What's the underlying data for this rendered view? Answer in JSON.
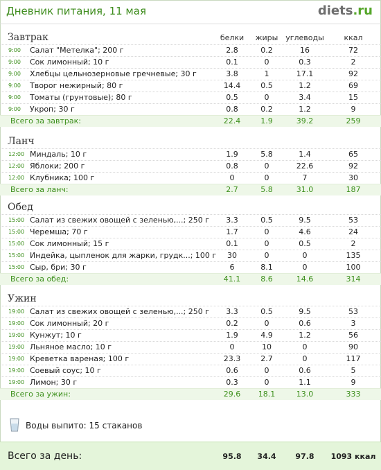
{
  "header": {
    "title": "Дневник питания, 11 мая",
    "logo_main": "diets",
    "logo_tld": ".ru"
  },
  "columns": {
    "protein": "белки",
    "fat": "жиры",
    "carbs": "углеводы",
    "kcal": "ккал"
  },
  "sections": [
    {
      "title": "Завтрак",
      "items": [
        {
          "time": "9:00",
          "name": "Салат \"Метелка\"; 200 г",
          "protein": "2.8",
          "fat": "0.2",
          "carbs": "16",
          "kcal": "72"
        },
        {
          "time": "9:00",
          "name": "Сок лимонный; 10 г",
          "protein": "0.1",
          "fat": "0",
          "carbs": "0.3",
          "kcal": "2"
        },
        {
          "time": "9:00",
          "name": "Хлебцы цельнозерновые гречневые; 30 г",
          "protein": "3.8",
          "fat": "1",
          "carbs": "17.1",
          "kcal": "92"
        },
        {
          "time": "9:00",
          "name": "Творог нежирный; 80 г",
          "protein": "14.4",
          "fat": "0.5",
          "carbs": "1.2",
          "kcal": "69"
        },
        {
          "time": "9:00",
          "name": "Томаты (грунтовые); 80 г",
          "protein": "0.5",
          "fat": "0",
          "carbs": "3.4",
          "kcal": "15"
        },
        {
          "time": "9:00",
          "name": "Укроп; 30 г",
          "protein": "0.8",
          "fat": "0.2",
          "carbs": "1.2",
          "kcal": "9"
        }
      ],
      "total": {
        "label": "Всего за завтрак:",
        "protein": "22.4",
        "fat": "1.9",
        "carbs": "39.2",
        "kcal": "259"
      }
    },
    {
      "title": "Ланч",
      "items": [
        {
          "time": "12:00",
          "name": "Миндаль; 10 г",
          "protein": "1.9",
          "fat": "5.8",
          "carbs": "1.4",
          "kcal": "65"
        },
        {
          "time": "12:00",
          "name": "Яблоки; 200 г",
          "protein": "0.8",
          "fat": "0",
          "carbs": "22.6",
          "kcal": "92"
        },
        {
          "time": "12:00",
          "name": "Клубника; 100 г",
          "protein": "0",
          "fat": "0",
          "carbs": "7",
          "kcal": "30"
        }
      ],
      "total": {
        "label": "Всего за ланч:",
        "protein": "2.7",
        "fat": "5.8",
        "carbs": "31.0",
        "kcal": "187"
      }
    },
    {
      "title": "Обед",
      "items": [
        {
          "time": "15:00",
          "name": "Салат из свежих овощей с зеленью,...; 250 г",
          "protein": "3.3",
          "fat": "0.5",
          "carbs": "9.5",
          "kcal": "53"
        },
        {
          "time": "15:00",
          "name": "Черемша; 70 г",
          "protein": "1.7",
          "fat": "0",
          "carbs": "4.6",
          "kcal": "24"
        },
        {
          "time": "15:00",
          "name": "Сок лимонный; 15 г",
          "protein": "0.1",
          "fat": "0",
          "carbs": "0.5",
          "kcal": "2"
        },
        {
          "time": "15:00",
          "name": "Индейка, цыпленок для жарки, грудк...; 100 г",
          "protein": "30",
          "fat": "0",
          "carbs": "0",
          "kcal": "135"
        },
        {
          "time": "15:00",
          "name": "Сыр, бри; 30 г",
          "protein": "6",
          "fat": "8.1",
          "carbs": "0",
          "kcal": "100"
        }
      ],
      "total": {
        "label": "Всего за обед:",
        "protein": "41.1",
        "fat": "8.6",
        "carbs": "14.6",
        "kcal": "314"
      }
    },
    {
      "title": "Ужин",
      "items": [
        {
          "time": "19:00",
          "name": "Салат из свежих овощей с зеленью,...; 250 г",
          "protein": "3.3",
          "fat": "0.5",
          "carbs": "9.5",
          "kcal": "53"
        },
        {
          "time": "19:00",
          "name": "Сок лимонный; 20 г",
          "protein": "0.2",
          "fat": "0",
          "carbs": "0.6",
          "kcal": "3"
        },
        {
          "time": "19:00",
          "name": "Кунжут; 10 г",
          "protein": "1.9",
          "fat": "4.9",
          "carbs": "1.2",
          "kcal": "56"
        },
        {
          "time": "19:00",
          "name": "Льняное масло; 10 г",
          "protein": "0",
          "fat": "10",
          "carbs": "0",
          "kcal": "90"
        },
        {
          "time": "19:00",
          "name": "Креветка вареная; 100 г",
          "protein": "23.3",
          "fat": "2.7",
          "carbs": "0",
          "kcal": "117"
        },
        {
          "time": "19:00",
          "name": "Соевый соус; 10 г",
          "protein": "0.6",
          "fat": "0",
          "carbs": "0.6",
          "kcal": "5"
        },
        {
          "time": "19:00",
          "name": "Лимон; 30 г",
          "protein": "0.3",
          "fat": "0",
          "carbs": "1.1",
          "kcal": "9"
        }
      ],
      "total": {
        "label": "Всего за ужин:",
        "protein": "29.6",
        "fat": "18.1",
        "carbs": "13.0",
        "kcal": "333"
      }
    }
  ],
  "water": {
    "text": "Воды выпито: 15 стаканов",
    "icon": "glass-icon"
  },
  "day_total": {
    "label": "Всего за день:",
    "protein": "95.8",
    "fat": "34.4",
    "carbs": "97.8",
    "kcal": "1093 ккал"
  }
}
